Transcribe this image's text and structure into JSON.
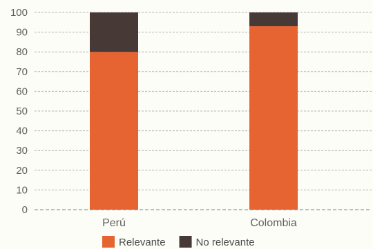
{
  "chart_data": {
    "type": "bar",
    "stacked": true,
    "categories": [
      "Perú",
      "Colombia"
    ],
    "series": [
      {
        "name": "Relevante",
        "values": [
          80,
          93
        ],
        "color": "#e56432"
      },
      {
        "name": "No relevante",
        "values": [
          20,
          7
        ],
        "color": "#473a36"
      }
    ],
    "title": "",
    "xlabel": "",
    "ylabel": "",
    "ylim": [
      0,
      100
    ],
    "yticks": [
      0,
      10,
      20,
      30,
      40,
      50,
      60,
      70,
      80,
      90,
      100
    ],
    "grid": true,
    "legend_position": "bottom"
  }
}
